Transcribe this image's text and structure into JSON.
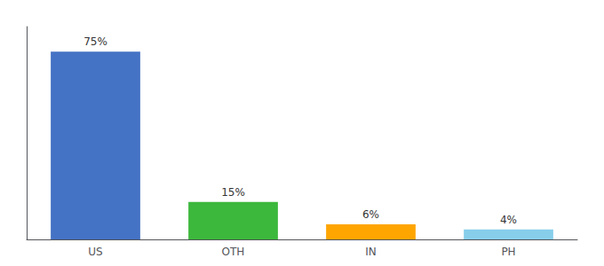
{
  "chart_data": {
    "type": "bar",
    "categories": [
      "US",
      "OTH",
      "IN",
      "PH"
    ],
    "values": [
      75,
      15,
      6,
      4
    ],
    "value_labels": [
      "75%",
      "15%",
      "6%",
      "4%"
    ],
    "colors": [
      "#4472c4",
      "#3cb83c",
      "#ffa500",
      "#87ceeb"
    ],
    "ylim": [
      0,
      85
    ],
    "yticks": [],
    "grid": false,
    "data_labels": true,
    "tick_labels": "x"
  }
}
